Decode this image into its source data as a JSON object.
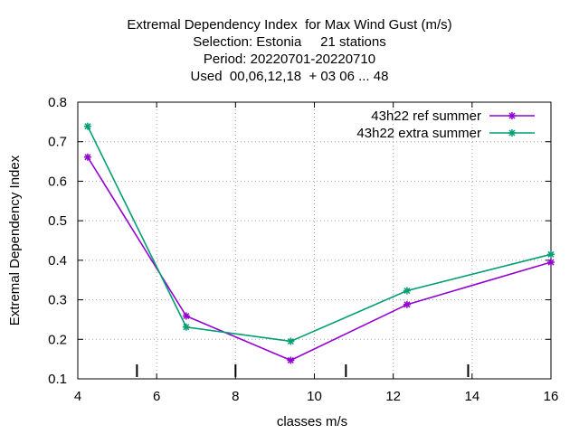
{
  "chart_data": {
    "type": "line",
    "title_lines": [
      "Extremal Dependency Index  for Max Wind Gust (m/s)",
      "Selection: Estonia     21 stations",
      "Period: 20220701-20220710",
      "Used  00,06,12,18  + 03 06 ... 48"
    ],
    "xlabel": "classes m/s",
    "ylabel": "Extremal Dependency Index",
    "xlim": [
      4,
      16
    ],
    "ylim": [
      0.1,
      0.8
    ],
    "x_ticks": [
      4,
      6,
      8,
      10,
      12,
      14,
      16
    ],
    "y_ticks": [
      0.1,
      0.2,
      0.3,
      0.4,
      0.5,
      0.6,
      0.7,
      0.8
    ],
    "grid": true,
    "legend_position": "top-right",
    "class_marks_x": [
      5.5,
      8.0,
      10.8,
      13.9
    ],
    "series": [
      {
        "name": "43h22_ref_summer",
        "legend_label": "43h22 ref summer",
        "color": "#9400d3",
        "x": [
          4.25,
          6.75,
          9.4,
          12.35,
          16.0
        ],
        "y": [
          0.661,
          0.259,
          0.147,
          0.288,
          0.395
        ]
      },
      {
        "name": "43h22_extra_summer",
        "legend_label": "43h22 extra summer",
        "color": "#009e73",
        "x": [
          4.25,
          6.75,
          9.4,
          12.35,
          16.0
        ],
        "y": [
          0.739,
          0.231,
          0.195,
          0.323,
          0.415
        ]
      }
    ]
  }
}
